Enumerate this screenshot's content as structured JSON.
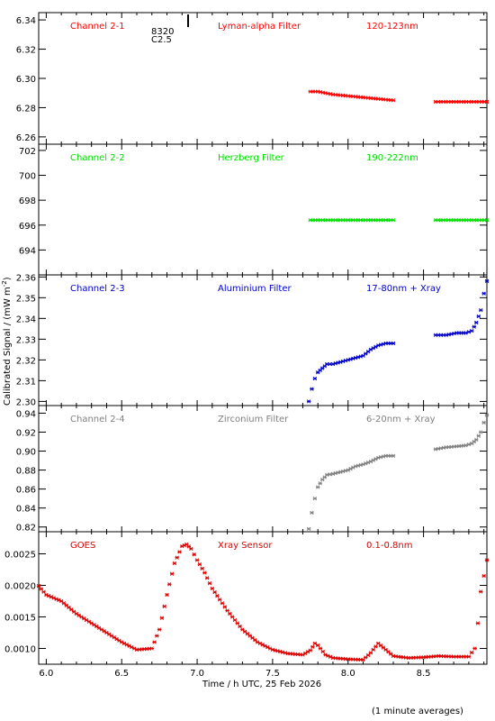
{
  "ylabel": "Calibrated Signal / (mW m",
  "ylabel_sup": "-2",
  "ylabel_close": ")",
  "xlabel": "Time / h UTC, 25 Feb 2026",
  "footnote": "(1 minute averages)",
  "marker_text_1": "8320",
  "marker_text_2": "C2.5",
  "x_ticks": [
    "6.0",
    "6.5",
    "7.0",
    "7.5",
    "8.0",
    "8.5"
  ],
  "x_tick_values": [
    6.0,
    6.5,
    7.0,
    7.5,
    8.0,
    8.5
  ],
  "chart_data": [
    {
      "type": "scatter",
      "label_left": "Channel 2-1",
      "label_mid": "Lyman-alpha Filter",
      "label_right": "120-123nm",
      "color": "#ff0000",
      "xlim": [
        5.95,
        8.92
      ],
      "ylim": [
        6.255,
        6.345
      ],
      "ytick_values": [
        6.26,
        6.28,
        6.3,
        6.32,
        6.34
      ],
      "yticks": [
        "6.26",
        "6.28",
        "6.30",
        "6.32",
        "6.34"
      ],
      "segments": [
        {
          "x": [
            7.75,
            7.8,
            7.9,
            8.0,
            8.1,
            8.2,
            8.3
          ],
          "y": [
            6.291,
            6.291,
            6.289,
            6.288,
            6.287,
            6.286,
            6.285
          ]
        },
        {
          "x": [
            8.58,
            8.7,
            8.8,
            8.92
          ],
          "y": [
            6.284,
            6.284,
            6.284,
            6.284
          ]
        }
      ]
    },
    {
      "type": "scatter",
      "label_left": "Channel 2-2",
      "label_mid": "Herzberg Filter",
      "label_right": "190-222nm",
      "color": "#00dd00",
      "xlim": [
        5.95,
        8.92
      ],
      "ylim": [
        692.0,
        702.5
      ],
      "ytick_values": [
        694,
        696,
        698,
        700,
        702
      ],
      "yticks": [
        "694",
        "696",
        "698",
        "700",
        "702"
      ],
      "segments": [
        {
          "x": [
            7.75,
            8.3
          ],
          "y": [
            696.4,
            696.4
          ]
        },
        {
          "x": [
            8.58,
            8.92
          ],
          "y": [
            696.4,
            696.4
          ]
        }
      ]
    },
    {
      "type": "scatter",
      "label_left": "Channel 2-3",
      "label_mid": "Aluminium Filter",
      "label_right": "17-80nm + Xray",
      "color": "#0000cc",
      "xlim": [
        5.95,
        8.92
      ],
      "ylim": [
        2.298,
        2.361
      ],
      "ytick_values": [
        2.3,
        2.31,
        2.32,
        2.33,
        2.34,
        2.35,
        2.36
      ],
      "yticks": [
        "2.30",
        "2.31",
        "2.32",
        "2.33",
        "2.34",
        "2.35",
        "2.36"
      ],
      "segments": [
        {
          "x": [
            7.74,
            7.76,
            7.78,
            7.8,
            7.83,
            7.86,
            7.9,
            7.95,
            8.0,
            8.05,
            8.1,
            8.15,
            8.2,
            8.25,
            8.3
          ],
          "y": [
            2.3,
            2.306,
            2.311,
            2.314,
            2.316,
            2.318,
            2.318,
            2.319,
            2.32,
            2.321,
            2.322,
            2.325,
            2.327,
            2.328,
            2.328
          ]
        },
        {
          "x": [
            8.58,
            8.65,
            8.72,
            8.78,
            8.82,
            8.85,
            8.88,
            8.9,
            8.92
          ],
          "y": [
            2.332,
            2.332,
            2.333,
            2.333,
            2.334,
            2.338,
            2.344,
            2.352,
            2.358
          ]
        }
      ]
    },
    {
      "type": "scatter",
      "label_left": "Channel 2-4",
      "label_mid": "Zirconium Filter",
      "label_right": "6-20nm + Xray",
      "color": "#808080",
      "label_color": "#808080",
      "xlim": [
        5.95,
        8.92
      ],
      "ylim": [
        0.815,
        0.948
      ],
      "ytick_values": [
        0.82,
        0.84,
        0.86,
        0.88,
        0.9,
        0.92,
        0.94
      ],
      "yticks": [
        "0.82",
        "0.84",
        "0.86",
        "0.88",
        "0.90",
        "0.92",
        "0.94"
      ],
      "segments": [
        {
          "x": [
            7.74,
            7.76,
            7.78,
            7.8,
            7.83,
            7.86,
            7.9,
            7.95,
            8.0,
            8.05,
            8.1,
            8.15,
            8.2,
            8.25,
            8.3
          ],
          "y": [
            0.818,
            0.835,
            0.85,
            0.862,
            0.87,
            0.875,
            0.876,
            0.878,
            0.88,
            0.884,
            0.886,
            0.889,
            0.893,
            0.895,
            0.895
          ]
        },
        {
          "x": [
            8.58,
            8.65,
            8.72,
            8.78,
            8.82,
            8.85,
            8.88,
            8.9,
            8.92
          ],
          "y": [
            0.902,
            0.904,
            0.905,
            0.906,
            0.908,
            0.912,
            0.92,
            0.93,
            0.938
          ]
        }
      ]
    },
    {
      "type": "scatter",
      "label_left": "GOES",
      "label_mid": "Xray Sensor",
      "label_right": "0.1-0.8nm",
      "color": "#dd0000",
      "xlim": [
        5.95,
        8.92
      ],
      "ylim": [
        0.00075,
        0.00285
      ],
      "ytick_values": [
        0.001,
        0.0015,
        0.002,
        0.0025
      ],
      "yticks": [
        "0.0010",
        "0.0015",
        "0.0020",
        "0.0025"
      ],
      "segments": [
        {
          "x": [
            5.95,
            6.0,
            6.1,
            6.2,
            6.3,
            6.4,
            6.5,
            6.6,
            6.7,
            6.75,
            6.8,
            6.85,
            6.9,
            6.93,
            6.96,
            7.0,
            7.05,
            7.1,
            7.2,
            7.3,
            7.4,
            7.5,
            7.6,
            7.7,
            7.75,
            7.78,
            7.8,
            7.85,
            7.9,
            8.0,
            8.1,
            8.15,
            8.2,
            8.25,
            8.3,
            8.4,
            8.5,
            8.6,
            8.7,
            8.8,
            8.84,
            8.86,
            8.88,
            8.9,
            8.92
          ],
          "y": [
            0.00199,
            0.00185,
            0.00175,
            0.00155,
            0.0014,
            0.00125,
            0.0011,
            0.00098,
            0.001,
            0.0013,
            0.00185,
            0.00235,
            0.00262,
            0.00265,
            0.00258,
            0.0024,
            0.0022,
            0.00195,
            0.0016,
            0.0013,
            0.0011,
            0.00098,
            0.00092,
            0.0009,
            0.00097,
            0.00108,
            0.00105,
            0.0009,
            0.00085,
            0.00083,
            0.00082,
            0.00093,
            0.00108,
            0.00098,
            0.00088,
            0.00085,
            0.00086,
            0.00088,
            0.00087,
            0.00087,
            0.001,
            0.0014,
            0.0019,
            0.00215,
            0.0024
          ]
        }
      ]
    }
  ]
}
